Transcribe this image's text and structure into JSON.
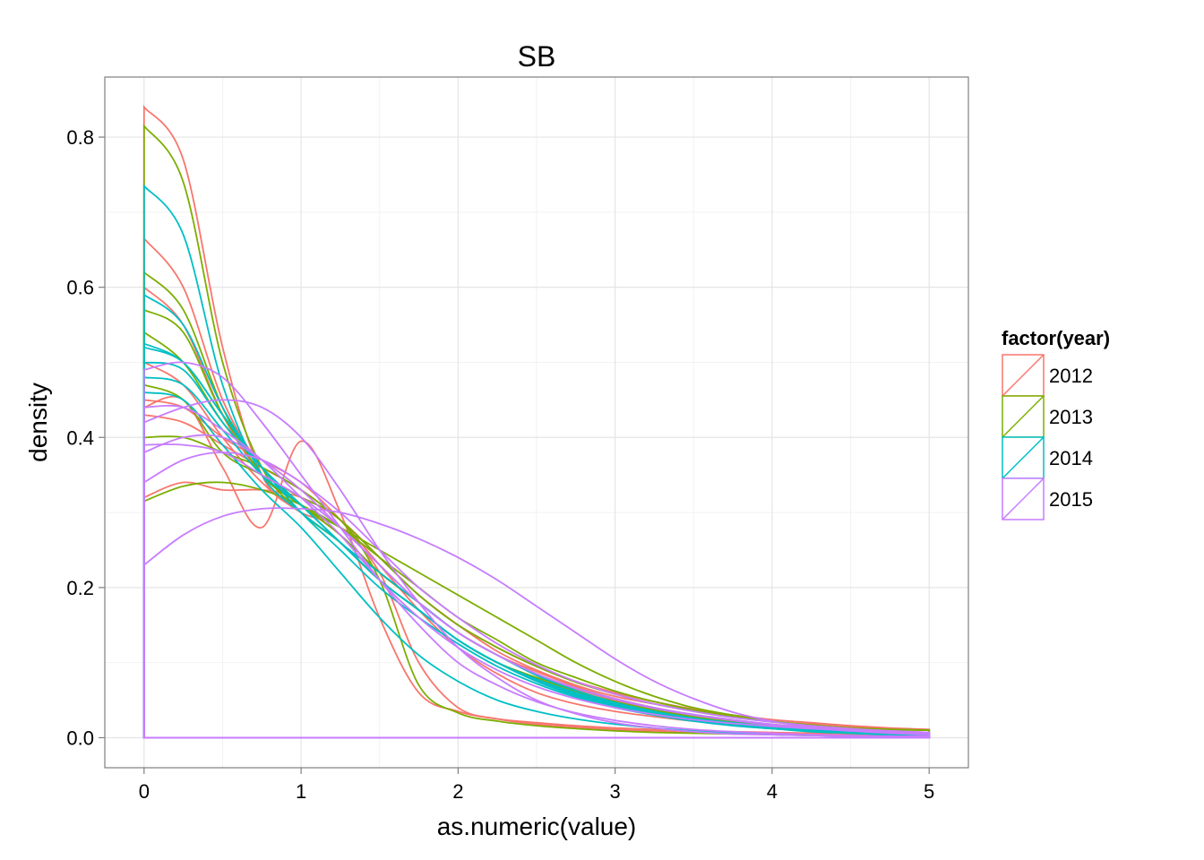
{
  "chart_data": {
    "type": "line",
    "title": "SB",
    "xlabel": "as.numeric(value)",
    "ylabel": "density",
    "xlim": [
      -0.25,
      5.25
    ],
    "ylim": [
      -0.04,
      0.88
    ],
    "x_ticks": [
      0,
      1,
      2,
      3,
      4,
      5
    ],
    "y_ticks": [
      0.0,
      0.2,
      0.4,
      0.6,
      0.8
    ],
    "x_tick_labels": [
      "0",
      "1",
      "2",
      "3",
      "4",
      "5"
    ],
    "y_tick_labels": [
      "0.0",
      "0.2",
      "0.4",
      "0.6",
      "0.8"
    ],
    "grid": true,
    "legend": {
      "title": "factor(year)",
      "position": "right",
      "entries": [
        {
          "label": "2012",
          "color": "#F8766D"
        },
        {
          "label": "2013",
          "color": "#7CAE00"
        },
        {
          "label": "2014",
          "color": "#00BFC4"
        },
        {
          "label": "2015",
          "color": "#C77CFF"
        }
      ]
    },
    "x": [
      0,
      0.25,
      0.5,
      0.75,
      1,
      1.25,
      1.5,
      1.75,
      2,
      2.25,
      2.5,
      2.75,
      3,
      3.25,
      3.5,
      3.75,
      4,
      4.25,
      4.5,
      4.75,
      5
    ],
    "series": [
      {
        "name": "2012",
        "color": "#F8766D",
        "values": [
          0.84,
          0.77,
          0.52,
          0.35,
          0.3,
          0.26,
          0.21,
          0.17,
          0.13,
          0.1,
          0.08,
          0.065,
          0.05,
          0.04,
          0.03,
          0.022,
          0.016,
          0.012,
          0.009,
          0.007,
          0.005
        ]
      },
      {
        "name": "2012",
        "color": "#F8766D",
        "values": [
          0.665,
          0.6,
          0.45,
          0.36,
          0.31,
          0.27,
          0.22,
          0.18,
          0.14,
          0.11,
          0.085,
          0.065,
          0.05,
          0.038,
          0.028,
          0.02,
          0.014,
          0.01,
          0.007,
          0.005,
          0.004
        ]
      },
      {
        "name": "2012",
        "color": "#F8766D",
        "values": [
          0.6,
          0.55,
          0.43,
          0.35,
          0.31,
          0.27,
          0.22,
          0.18,
          0.14,
          0.11,
          0.088,
          0.068,
          0.052,
          0.04,
          0.03,
          0.022,
          0.016,
          0.012,
          0.009,
          0.007,
          0.005
        ]
      },
      {
        "name": "2012",
        "color": "#F8766D",
        "values": [
          0.45,
          0.44,
          0.4,
          0.37,
          0.34,
          0.29,
          0.23,
          0.17,
          0.12,
          0.085,
          0.06,
          0.045,
          0.035,
          0.028,
          0.022,
          0.018,
          0.014,
          0.011,
          0.009,
          0.007,
          0.006
        ]
      },
      {
        "name": "2012",
        "color": "#F8766D",
        "values": [
          0.44,
          0.45,
          0.36,
          0.28,
          0.395,
          0.3,
          0.16,
          0.06,
          0.035,
          0.025,
          0.02,
          0.016,
          0.013,
          0.011,
          0.009,
          0.008,
          0.007,
          0.006,
          0.005,
          0.004,
          0.003
        ]
      },
      {
        "name": "2012",
        "color": "#F8766D",
        "values": [
          0.43,
          0.42,
          0.39,
          0.36,
          0.33,
          0.29,
          0.24,
          0.19,
          0.15,
          0.115,
          0.09,
          0.07,
          0.055,
          0.045,
          0.036,
          0.03,
          0.024,
          0.02,
          0.016,
          0.013,
          0.011
        ]
      },
      {
        "name": "2012",
        "color": "#F8766D",
        "values": [
          0.32,
          0.34,
          0.33,
          0.33,
          0.32,
          0.29,
          0.24,
          0.19,
          0.15,
          0.12,
          0.095,
          0.075,
          0.06,
          0.048,
          0.038,
          0.03,
          0.024,
          0.019,
          0.015,
          0.012,
          0.01
        ]
      },
      {
        "name": "2012",
        "color": "#F8766D",
        "values": [
          0.5,
          0.47,
          0.4,
          0.34,
          0.3,
          0.28,
          0.22,
          0.1,
          0.04,
          0.025,
          0.018,
          0.014,
          0.011,
          0.009,
          0.007,
          0.006,
          0.005,
          0.004,
          0.003,
          0.002,
          0.002
        ]
      },
      {
        "name": "2013",
        "color": "#7CAE00",
        "values": [
          0.815,
          0.74,
          0.5,
          0.36,
          0.3,
          0.26,
          0.21,
          0.17,
          0.13,
          0.1,
          0.08,
          0.062,
          0.048,
          0.037,
          0.028,
          0.021,
          0.016,
          0.012,
          0.009,
          0.007,
          0.005
        ]
      },
      {
        "name": "2013",
        "color": "#7CAE00",
        "values": [
          0.62,
          0.57,
          0.44,
          0.35,
          0.31,
          0.27,
          0.22,
          0.18,
          0.14,
          0.11,
          0.085,
          0.066,
          0.051,
          0.039,
          0.03,
          0.023,
          0.017,
          0.013,
          0.01,
          0.008,
          0.006
        ]
      },
      {
        "name": "2013",
        "color": "#7CAE00",
        "values": [
          0.57,
          0.54,
          0.43,
          0.36,
          0.31,
          0.26,
          0.21,
          0.17,
          0.13,
          0.1,
          0.078,
          0.06,
          0.046,
          0.035,
          0.026,
          0.019,
          0.014,
          0.01,
          0.007,
          0.005,
          0.004
        ]
      },
      {
        "name": "2013",
        "color": "#7CAE00",
        "values": [
          0.54,
          0.5,
          0.42,
          0.36,
          0.31,
          0.28,
          0.25,
          0.22,
          0.19,
          0.16,
          0.13,
          0.1,
          0.075,
          0.055,
          0.04,
          0.03,
          0.022,
          0.017,
          0.013,
          0.011,
          0.01
        ]
      },
      {
        "name": "2013",
        "color": "#7CAE00",
        "values": [
          0.4,
          0.4,
          0.38,
          0.36,
          0.33,
          0.29,
          0.24,
          0.19,
          0.15,
          0.12,
          0.095,
          0.074,
          0.058,
          0.045,
          0.035,
          0.027,
          0.021,
          0.016,
          0.013,
          0.011,
          0.01
        ]
      },
      {
        "name": "2013",
        "color": "#7CAE00",
        "values": [
          0.315,
          0.335,
          0.34,
          0.33,
          0.31,
          0.28,
          0.24,
          0.2,
          0.16,
          0.13,
          0.1,
          0.08,
          0.062,
          0.048,
          0.037,
          0.028,
          0.021,
          0.016,
          0.013,
          0.011,
          0.01
        ]
      },
      {
        "name": "2013",
        "color": "#7CAE00",
        "values": [
          0.47,
          0.45,
          0.38,
          0.35,
          0.32,
          0.29,
          0.21,
          0.07,
          0.033,
          0.022,
          0.016,
          0.012,
          0.009,
          0.007,
          0.006,
          0.005,
          0.004,
          0.003,
          0.003,
          0.002,
          0.002
        ]
      },
      {
        "name": "2014",
        "color": "#00BFC4",
        "values": [
          0.735,
          0.67,
          0.47,
          0.35,
          0.3,
          0.26,
          0.21,
          0.17,
          0.13,
          0.1,
          0.078,
          0.06,
          0.046,
          0.035,
          0.026,
          0.02,
          0.015,
          0.011,
          0.008,
          0.006,
          0.005
        ]
      },
      {
        "name": "2014",
        "color": "#00BFC4",
        "values": [
          0.59,
          0.55,
          0.44,
          0.36,
          0.31,
          0.26,
          0.21,
          0.17,
          0.13,
          0.1,
          0.077,
          0.059,
          0.045,
          0.034,
          0.025,
          0.019,
          0.014,
          0.01,
          0.007,
          0.005,
          0.004
        ]
      },
      {
        "name": "2014",
        "color": "#00BFC4",
        "values": [
          0.525,
          0.5,
          0.43,
          0.36,
          0.31,
          0.26,
          0.21,
          0.17,
          0.13,
          0.1,
          0.075,
          0.056,
          0.042,
          0.031,
          0.023,
          0.017,
          0.012,
          0.009,
          0.006,
          0.004,
          0.003
        ]
      },
      {
        "name": "2014",
        "color": "#00BFC4",
        "values": [
          0.5,
          0.49,
          0.42,
          0.36,
          0.31,
          0.26,
          0.21,
          0.17,
          0.13,
          0.1,
          0.077,
          0.058,
          0.044,
          0.033,
          0.024,
          0.018,
          0.013,
          0.009,
          0.007,
          0.005,
          0.004
        ]
      },
      {
        "name": "2014",
        "color": "#00BFC4",
        "values": [
          0.48,
          0.47,
          0.41,
          0.35,
          0.31,
          0.26,
          0.22,
          0.18,
          0.14,
          0.11,
          0.083,
          0.063,
          0.047,
          0.035,
          0.026,
          0.019,
          0.014,
          0.01,
          0.007,
          0.005,
          0.004
        ]
      },
      {
        "name": "2014",
        "color": "#00BFC4",
        "values": [
          0.46,
          0.45,
          0.39,
          0.33,
          0.28,
          0.22,
          0.16,
          0.11,
          0.075,
          0.05,
          0.035,
          0.025,
          0.018,
          0.013,
          0.009,
          0.006,
          0.004,
          0.003,
          0.002,
          0.002,
          0.001
        ]
      },
      {
        "name": "2014",
        "color": "#00BFC4",
        "values": [
          0.52,
          0.5,
          0.43,
          0.36,
          0.3,
          0.25,
          0.2,
          0.16,
          0.125,
          0.095,
          0.072,
          0.054,
          0.04,
          0.03,
          0.022,
          0.016,
          0.012,
          0.008,
          0.006,
          0.004,
          0.003
        ]
      },
      {
        "name": "2015",
        "color": "#C77CFF",
        "values": [
          0.23,
          0.27,
          0.295,
          0.305,
          0.305,
          0.3,
          0.285,
          0.265,
          0.24,
          0.21,
          0.175,
          0.14,
          0.105,
          0.075,
          0.052,
          0.034,
          0.022,
          0.014,
          0.009,
          0.006,
          0.004
        ]
      },
      {
        "name": "2015",
        "color": "#C77CFF",
        "values": [
          0.38,
          0.4,
          0.4,
          0.37,
          0.33,
          0.28,
          0.23,
          0.18,
          0.14,
          0.11,
          0.085,
          0.066,
          0.052,
          0.04,
          0.031,
          0.024,
          0.018,
          0.014,
          0.011,
          0.009,
          0.007
        ]
      },
      {
        "name": "2015",
        "color": "#C77CFF",
        "values": [
          0.42,
          0.44,
          0.45,
          0.44,
          0.4,
          0.33,
          0.25,
          0.18,
          0.12,
          0.08,
          0.05,
          0.032,
          0.02,
          0.013,
          0.008,
          0.005,
          0.004,
          0.003,
          0.002,
          0.002,
          0.001
        ]
      },
      {
        "name": "2015",
        "color": "#C77CFF",
        "values": [
          0.34,
          0.37,
          0.38,
          0.37,
          0.34,
          0.3,
          0.25,
          0.2,
          0.16,
          0.125,
          0.097,
          0.075,
          0.058,
          0.045,
          0.035,
          0.027,
          0.021,
          0.016,
          0.012,
          0.009,
          0.007
        ]
      },
      {
        "name": "2015",
        "color": "#C77CFF",
        "values": [
          0.49,
          0.5,
          0.48,
          0.42,
          0.35,
          0.28,
          0.21,
          0.15,
          0.1,
          0.07,
          0.048,
          0.033,
          0.023,
          0.016,
          0.011,
          0.008,
          0.006,
          0.004,
          0.003,
          0.002,
          0.002
        ]
      },
      {
        "name": "2015",
        "color": "#C77CFF",
        "values": [
          0.44,
          0.44,
          0.41,
          0.37,
          0.32,
          0.27,
          0.21,
          0.16,
          0.12,
          0.09,
          0.068,
          0.052,
          0.04,
          0.031,
          0.024,
          0.019,
          0.015,
          0.012,
          0.009,
          0.007,
          0.006
        ]
      },
      {
        "name": "2015",
        "color": "#C77CFF",
        "values": [
          0.39,
          0.39,
          0.38,
          0.35,
          0.32,
          0.28,
          0.23,
          0.18,
          0.14,
          0.11,
          0.085,
          0.066,
          0.051,
          0.039,
          0.03,
          0.023,
          0.017,
          0.013,
          0.01,
          0.008,
          0.006
        ]
      }
    ]
  }
}
